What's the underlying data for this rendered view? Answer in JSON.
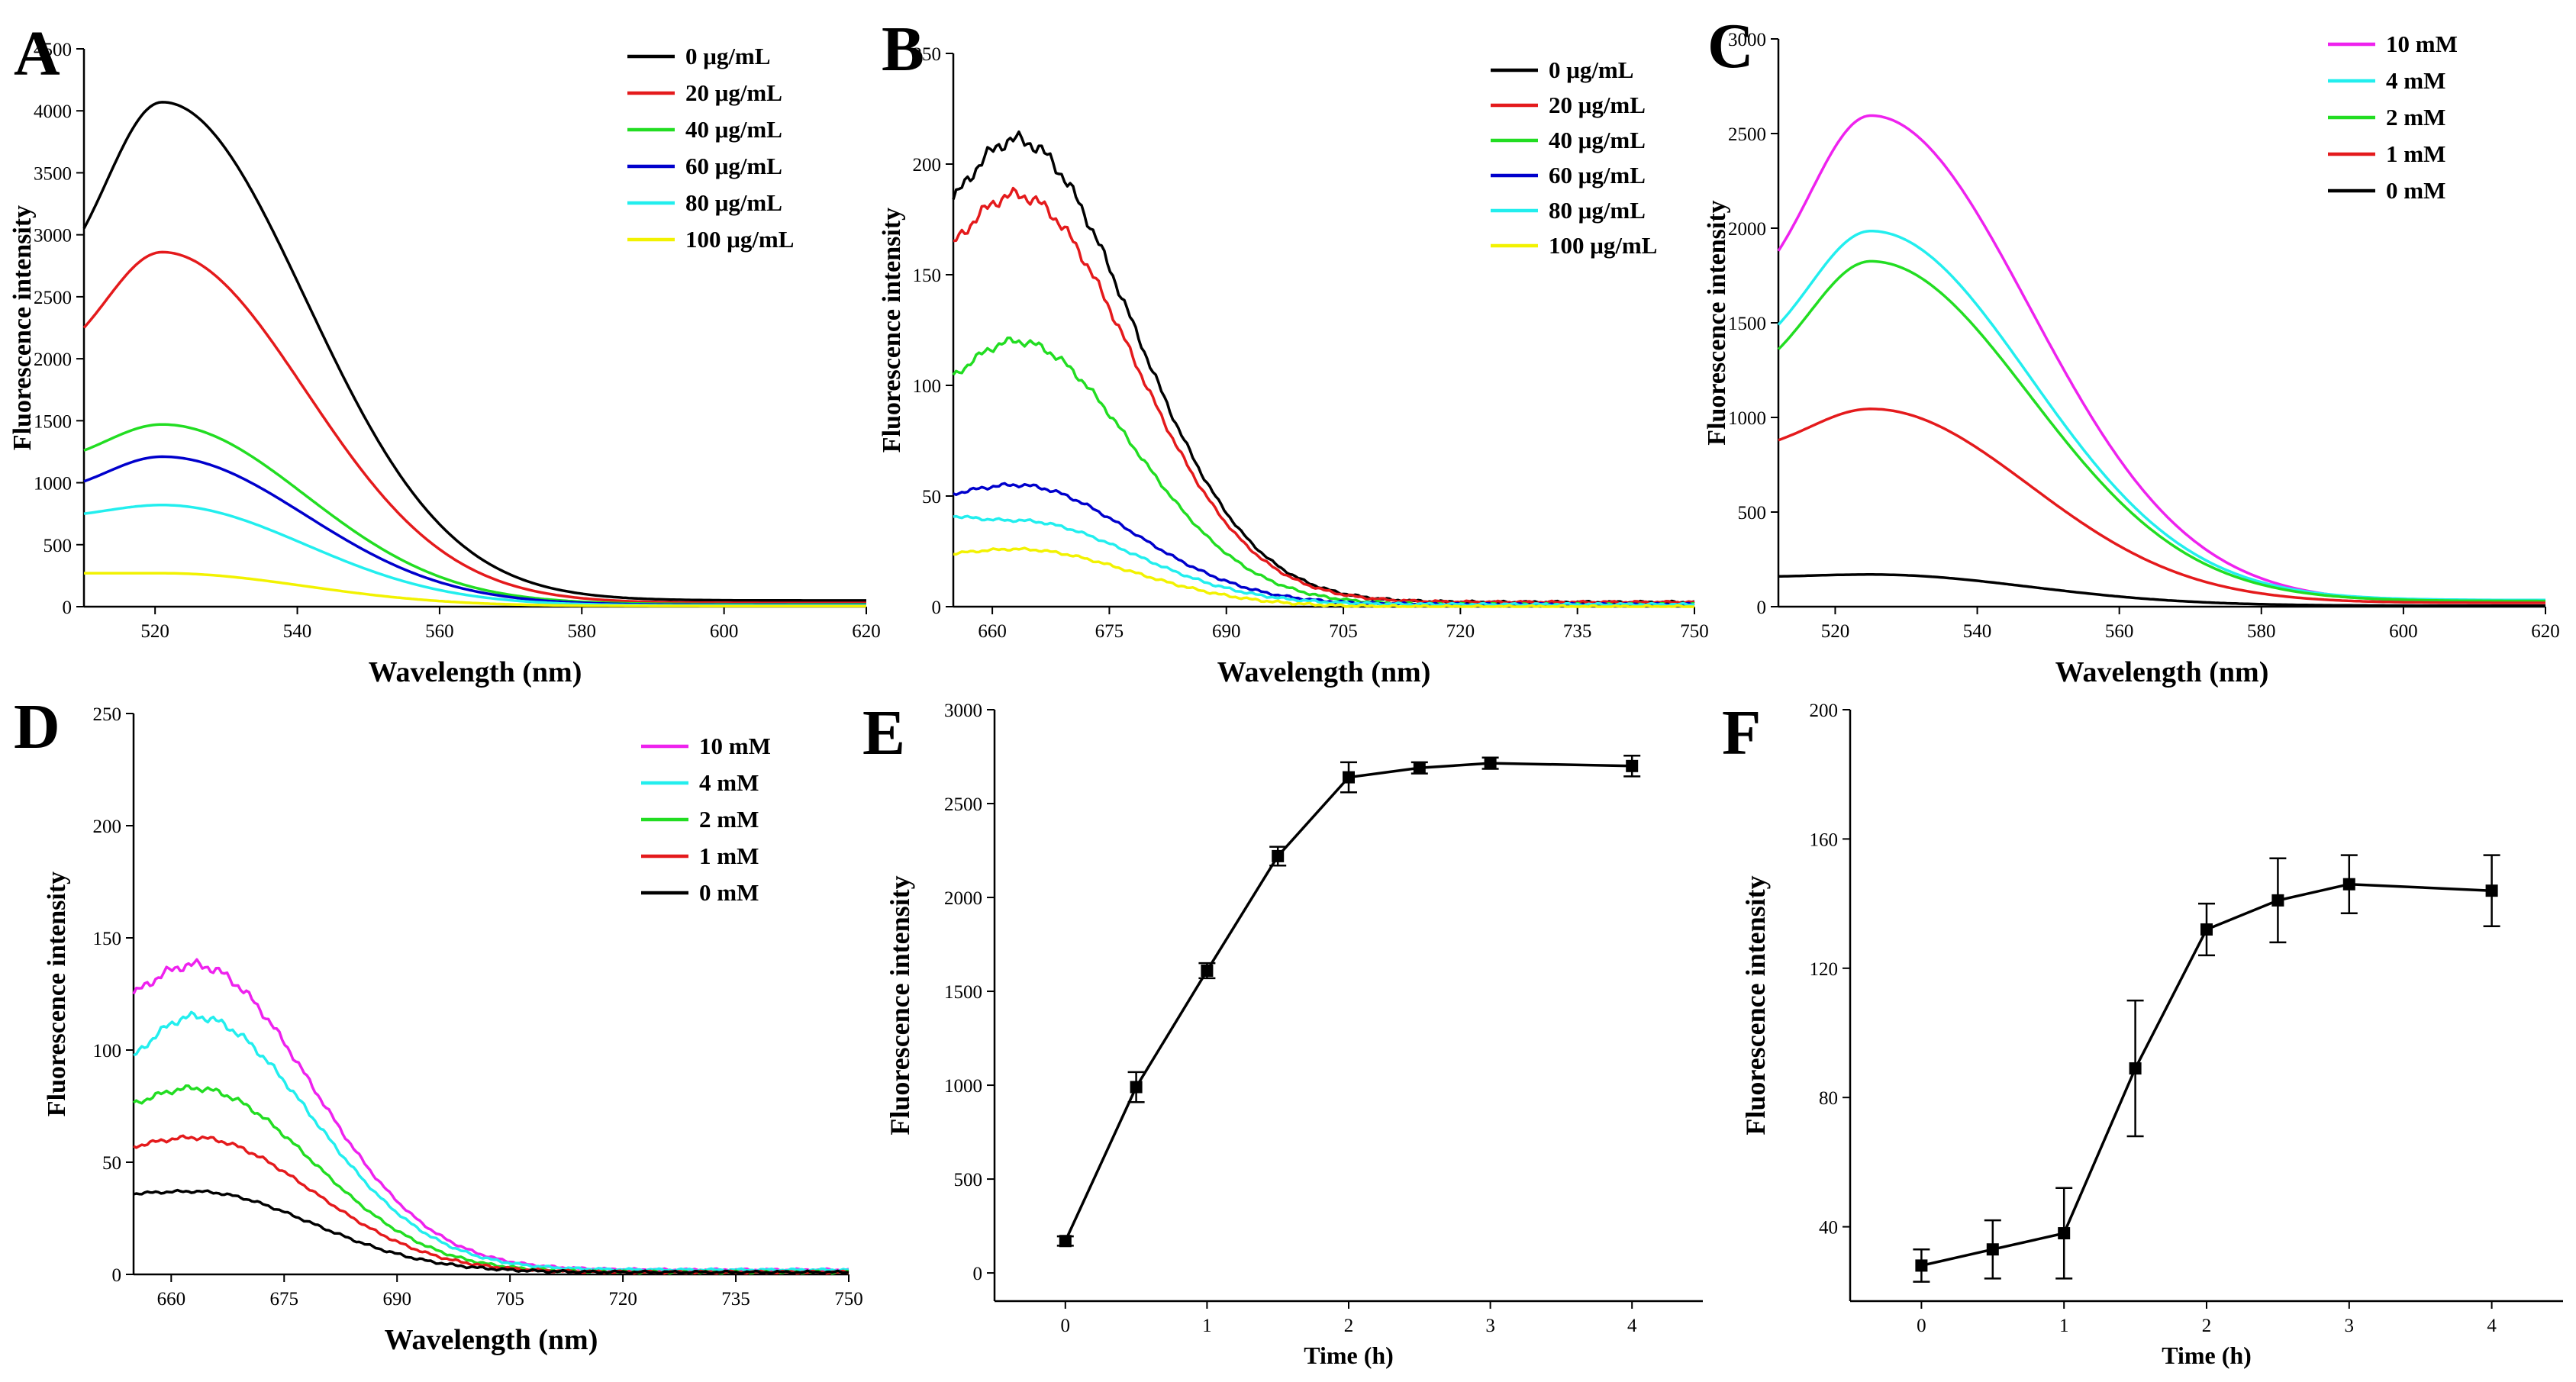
{
  "chart_data": [
    {
      "id": "A",
      "panel_label": "A",
      "type": "line",
      "style": "spectrum",
      "xlabel": "Wavelength (nm)",
      "ylabel": "Fluorescence intensity",
      "xlim": [
        510,
        620
      ],
      "ylim": [
        0,
        4500
      ],
      "xticks": [
        520,
        540,
        560,
        580,
        600,
        620
      ],
      "yticks": [
        0,
        500,
        1000,
        1500,
        2000,
        2500,
        3000,
        3500,
        4000,
        4500
      ],
      "legend_position": "top-right",
      "peak_x": 521,
      "decay_width": 27,
      "rise_width": 11,
      "end_x": 620,
      "series": [
        {
          "name": "0 μg/mL",
          "color": "#000000",
          "peak": 4070,
          "start": 3050,
          "end": 50
        },
        {
          "name": "20 μg/mL",
          "color": "#e41a1c",
          "peak": 2860,
          "start": 2250,
          "end": 30
        },
        {
          "name": "40 μg/mL",
          "color": "#22dd22",
          "peak": 1470,
          "start": 1260,
          "end": 20
        },
        {
          "name": "60 μg/mL",
          "color": "#0000cc",
          "peak": 1210,
          "start": 1010,
          "end": 15
        },
        {
          "name": "80 μg/mL",
          "color": "#22eeee",
          "peak": 820,
          "start": 750,
          "end": 10
        },
        {
          "name": "100 μg/mL",
          "color": "#f2f200",
          "peak": 270,
          "start": 270,
          "end": 5
        }
      ]
    },
    {
      "id": "B",
      "panel_label": "B",
      "type": "line",
      "style": "spectrum",
      "xlabel": "Wavelength (nm)",
      "ylabel": "Fluorescence intensity",
      "xlim": [
        655,
        750
      ],
      "ylim": [
        0,
        250
      ],
      "xticks": [
        660,
        675,
        690,
        705,
        720,
        735,
        750
      ],
      "yticks": [
        0,
        50,
        100,
        150,
        200,
        250
      ],
      "legend_position": "top-right",
      "peak_x": 663,
      "decay_width": 20,
      "rise_width": 10,
      "end_x": 750,
      "noise": true,
      "series": [
        {
          "name": "0 μg/mL",
          "color": "#000000",
          "peak": 211,
          "start": 184,
          "end": 2
        },
        {
          "name": "20 μg/mL",
          "color": "#e41a1c",
          "peak": 186,
          "start": 164,
          "end": 2
        },
        {
          "name": "40 μg/mL",
          "color": "#22dd22",
          "peak": 120,
          "start": 104,
          "end": 1
        },
        {
          "name": "60 μg/mL",
          "color": "#0000cc",
          "peak": 55,
          "start": 51,
          "end": 1
        },
        {
          "name": "80 μg/mL",
          "color": "#22eeee",
          "peak": 39,
          "start": 41,
          "end": 1
        },
        {
          "name": "100 μg/mL",
          "color": "#f2f200",
          "peak": 26,
          "start": 24,
          "end": 0
        }
      ]
    },
    {
      "id": "C",
      "panel_label": "C",
      "type": "line",
      "style": "spectrum",
      "xlabel": "Wavelength (nm)",
      "ylabel": "Fluorescence intensity",
      "xlim": [
        512,
        620
      ],
      "ylim": [
        0,
        3000
      ],
      "xticks": [
        520,
        540,
        560,
        580,
        600,
        620
      ],
      "yticks": [
        0,
        500,
        1000,
        1500,
        2000,
        2500,
        3000
      ],
      "legend_position": "top-right",
      "peak_x": 525,
      "decay_width": 30,
      "rise_width": 12,
      "end_x": 620,
      "series": [
        {
          "name": "10 mM",
          "color": "#ee22ee",
          "peak": 2595,
          "start": 1880,
          "end": 25
        },
        {
          "name": "4 mM",
          "color": "#22eeee",
          "peak": 1985,
          "start": 1490,
          "end": 35
        },
        {
          "name": "2 mM",
          "color": "#22dd22",
          "peak": 1825,
          "start": 1360,
          "end": 30
        },
        {
          "name": "1 mM",
          "color": "#e41a1c",
          "peak": 1045,
          "start": 880,
          "end": 20
        },
        {
          "name": "0 mM",
          "color": "#000000",
          "peak": 170,
          "start": 160,
          "end": 5
        }
      ]
    },
    {
      "id": "D",
      "panel_label": "D",
      "type": "line",
      "style": "spectrum",
      "xlabel": "Wavelength (nm)",
      "ylabel": "Fluorescence intensity",
      "xlim": [
        655,
        750
      ],
      "ylim": [
        0,
        250
      ],
      "xticks": [
        660,
        675,
        690,
        705,
        720,
        735,
        750
      ],
      "yticks": [
        0,
        50,
        100,
        150,
        200,
        250
      ],
      "legend_position": "top-right",
      "peak_x": 663,
      "decay_width": 21,
      "rise_width": 10,
      "end_x": 750,
      "noise": true,
      "series": [
        {
          "name": "10 mM",
          "color": "#ee22ee",
          "peak": 138,
          "start": 125,
          "end": 2
        },
        {
          "name": "4 mM",
          "color": "#22eeee",
          "peak": 115,
          "start": 97,
          "end": 2
        },
        {
          "name": "2 mM",
          "color": "#22dd22",
          "peak": 83,
          "start": 76,
          "end": 1
        },
        {
          "name": "1 mM",
          "color": "#e41a1c",
          "peak": 61,
          "start": 57,
          "end": 1
        },
        {
          "name": "0 mM",
          "color": "#000000",
          "peak": 37,
          "start": 36,
          "end": 1
        }
      ]
    },
    {
      "id": "E",
      "panel_label": "E",
      "type": "line",
      "style": "errorbar",
      "xlabel": "Time (h)",
      "ylabel": "Fluorescence intensity",
      "xlim": [
        -0.5,
        4.5
      ],
      "ylim": [
        -150,
        3000
      ],
      "xticks": [
        0,
        1,
        2,
        3,
        4
      ],
      "yticks": [
        0,
        500,
        1000,
        1500,
        2000,
        2500,
        3000
      ],
      "x": [
        0,
        0.5,
        1,
        1.5,
        2,
        2.5,
        3,
        4
      ],
      "y": [
        170,
        990,
        1610,
        2220,
        2640,
        2690,
        2715,
        2700
      ],
      "err": [
        25,
        80,
        40,
        50,
        80,
        30,
        30,
        55
      ]
    },
    {
      "id": "F",
      "panel_label": "F",
      "type": "line",
      "style": "errorbar",
      "xlabel": "Time (h)",
      "ylabel": "Fluorescence intensity",
      "xlim": [
        -0.5,
        4.5
      ],
      "ylim": [
        17,
        200
      ],
      "xticks": [
        0,
        1,
        2,
        3,
        4
      ],
      "yticks": [
        40,
        80,
        120,
        160,
        200
      ],
      "x": [
        0,
        0.5,
        1,
        1.5,
        2,
        2.5,
        3,
        4
      ],
      "y": [
        28,
        33,
        38,
        89,
        132,
        141,
        146,
        144
      ],
      "err": [
        5,
        9,
        14,
        21,
        8,
        13,
        9,
        11
      ]
    }
  ]
}
